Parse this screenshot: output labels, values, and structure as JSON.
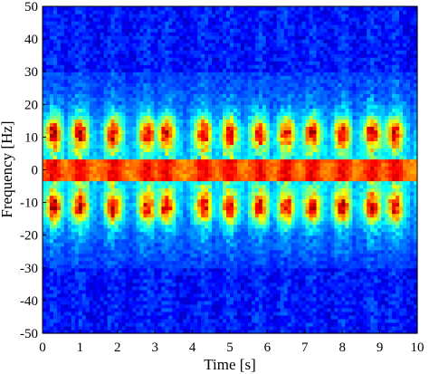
{
  "chart_data": {
    "type": "heatmap",
    "title": "",
    "xlabel": "Time [s]",
    "ylabel": "Frequency [Hz]",
    "xlim": [
      0,
      10
    ],
    "ylim": [
      -50,
      50
    ],
    "x_ticks": [
      "0",
      "1",
      "2",
      "3",
      "4",
      "5",
      "6",
      "7",
      "8",
      "9",
      "10"
    ],
    "y_ticks": [
      "-50",
      "-40",
      "-30",
      "-20",
      "-10",
      "0",
      "10",
      "20",
      "30",
      "40",
      "50"
    ],
    "colormap": "jet",
    "colors": {
      "low": "#00008f",
      "mid_low": "#0080ff",
      "mid": "#80ff80",
      "mid_high": "#ff8000",
      "high": "#800000"
    },
    "grid": false,
    "features": {
      "dc_band_hz": [
        -3,
        3
      ],
      "main_band_hz": [
        8,
        15
      ],
      "activity_extent_hz": [
        -30,
        30
      ],
      "burst_times_s": [
        0.3,
        1.0,
        1.9,
        2.8,
        3.3,
        4.3,
        5.0,
        5.8,
        6.5,
        7.2,
        8.0,
        8.8,
        9.4
      ]
    }
  }
}
